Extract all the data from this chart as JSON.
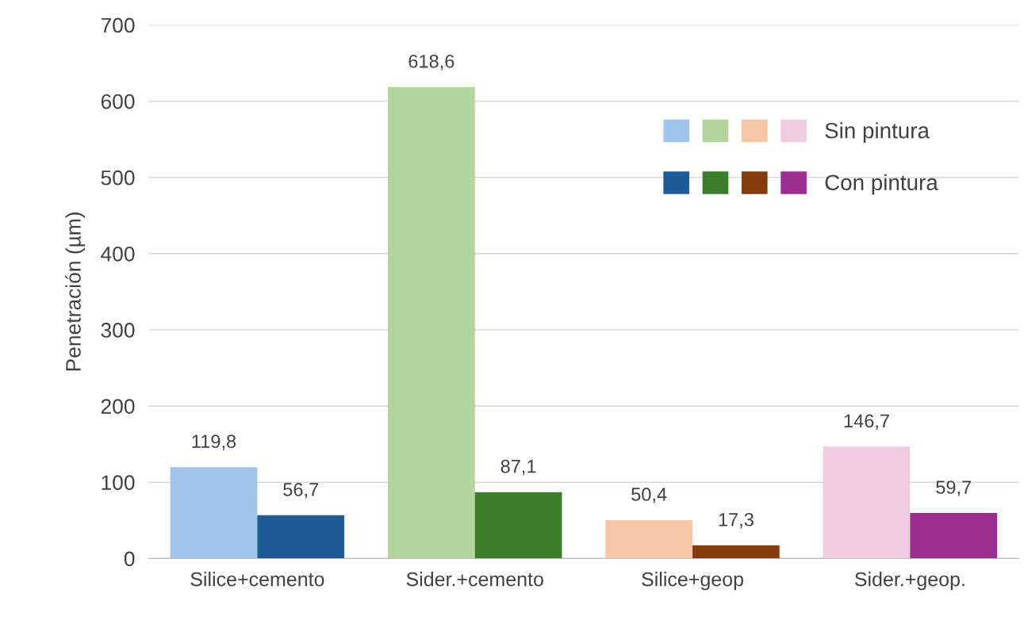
{
  "chart_data": {
    "type": "bar",
    "ylabel": "Penetración (µm)",
    "categories": [
      "Silice+cemento",
      "Sider.+cemento",
      "Silice+geop",
      "Sider.+geop."
    ],
    "series": [
      {
        "name": "Sin pintura",
        "colors": [
          "#9fc5ea",
          "#b3d59c",
          "#f7c6a6",
          "#f0cce4"
        ],
        "values": [
          119.8,
          618.6,
          50.4,
          146.7
        ],
        "value_labels": [
          "119,8",
          "618,6",
          "50,4",
          "146,7"
        ]
      },
      {
        "name": "Con pintura",
        "colors": [
          "#1f5b99",
          "#3a7d2c",
          "#843c0c",
          "#9b2f8f"
        ],
        "values": [
          56.7,
          87.1,
          17.3,
          59.7
        ],
        "value_labels": [
          "56,7",
          "87,1",
          "17,3",
          "59,7"
        ]
      }
    ],
    "ylim": [
      0,
      700
    ],
    "yticks": [
      0,
      100,
      200,
      300,
      400,
      500,
      600,
      700
    ],
    "grid": "y",
    "legend": "top right"
  }
}
